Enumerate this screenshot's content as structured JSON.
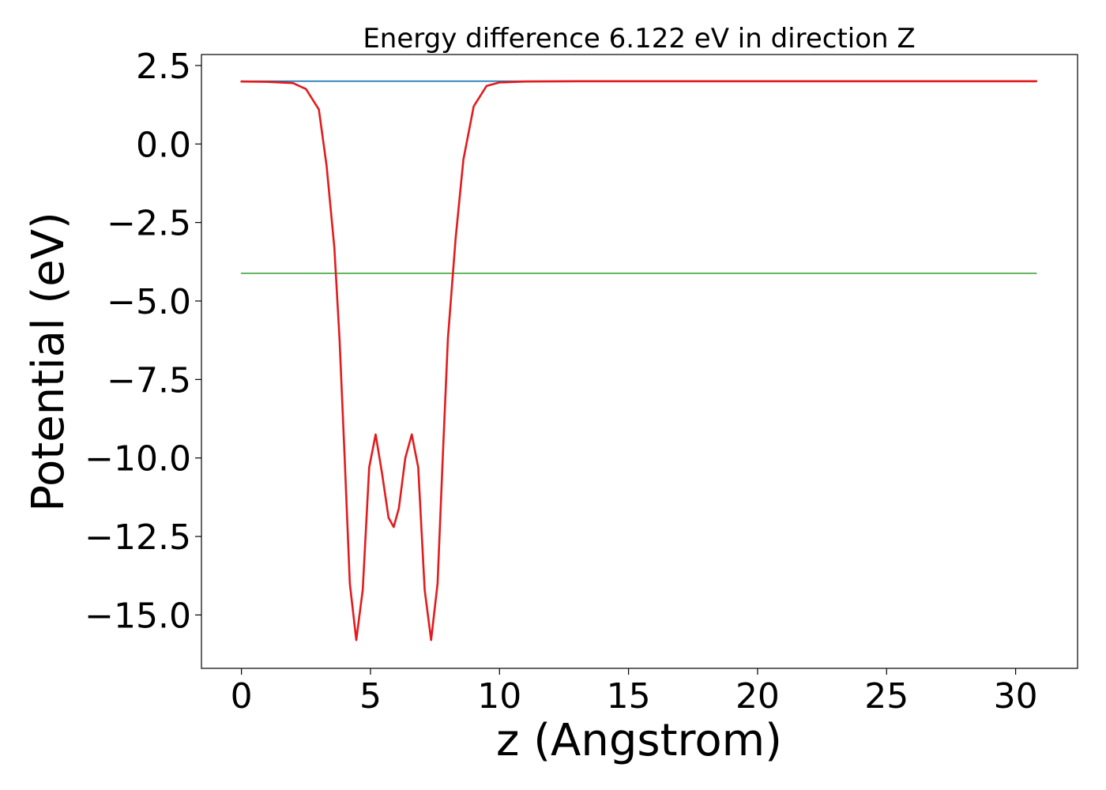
{
  "chart_data": {
    "type": "line",
    "title": "Energy difference 6.122 eV in direction Z",
    "xlabel": "z (Angstrom)",
    "ylabel": "Potential (eV)",
    "xlim": [
      -1.55,
      32.4
    ],
    "ylim": [
      -16.7,
      2.85
    ],
    "xticks": [
      0,
      5,
      10,
      15,
      20,
      25,
      30
    ],
    "xtick_labels": [
      "0",
      "5",
      "10",
      "15",
      "20",
      "25",
      "30"
    ],
    "yticks": [
      2.5,
      0.0,
      -2.5,
      -5.0,
      -7.5,
      -10.0,
      -12.5,
      -15.0
    ],
    "ytick_labels": [
      "2.5",
      "0.0",
      "−2.5",
      "−5.0",
      "−7.5",
      "−10.0",
      "−12.5",
      "−15.0"
    ],
    "grid": false,
    "colors": {
      "blue": "#1f77b4",
      "green": "#4daf4a",
      "red": "#e41a1c",
      "purple": "#7570b3"
    },
    "series": [
      {
        "color": "#1f77b4",
        "x": [
          0,
          30.8
        ],
        "y": [
          2.0,
          2.0
        ]
      },
      {
        "color": "#4daf4a",
        "x": [
          0,
          30.8
        ],
        "y": [
          -4.12,
          -4.12
        ]
      },
      {
        "color": "#7570b3",
        "x": [
          10.5,
          30.8
        ],
        "y": [
          1.99,
          1.99
        ]
      },
      {
        "color": "#e41a1c",
        "x": [
          0,
          1.0,
          2.0,
          2.5,
          3.0,
          3.3,
          3.6,
          3.8,
          4.0,
          4.2,
          4.45,
          4.7,
          4.95,
          5.2,
          5.45,
          5.7,
          5.9,
          6.1,
          6.35,
          6.6,
          6.85,
          7.1,
          7.35,
          7.6,
          7.8,
          8.0,
          8.3,
          8.6,
          9.0,
          9.5,
          10.0,
          11.0,
          13.0,
          20.0,
          30.8
        ],
        "y": [
          1.99,
          1.98,
          1.94,
          1.75,
          1.1,
          -0.7,
          -3.3,
          -6.2,
          -10.0,
          -14.0,
          -15.8,
          -14.2,
          -10.3,
          -9.25,
          -10.5,
          -11.9,
          -12.2,
          -11.6,
          -10.0,
          -9.25,
          -10.3,
          -14.2,
          -15.8,
          -14.0,
          -10.0,
          -6.2,
          -3.0,
          -0.5,
          1.2,
          1.85,
          1.96,
          1.99,
          2.0,
          2.0,
          2.0
        ]
      }
    ]
  }
}
